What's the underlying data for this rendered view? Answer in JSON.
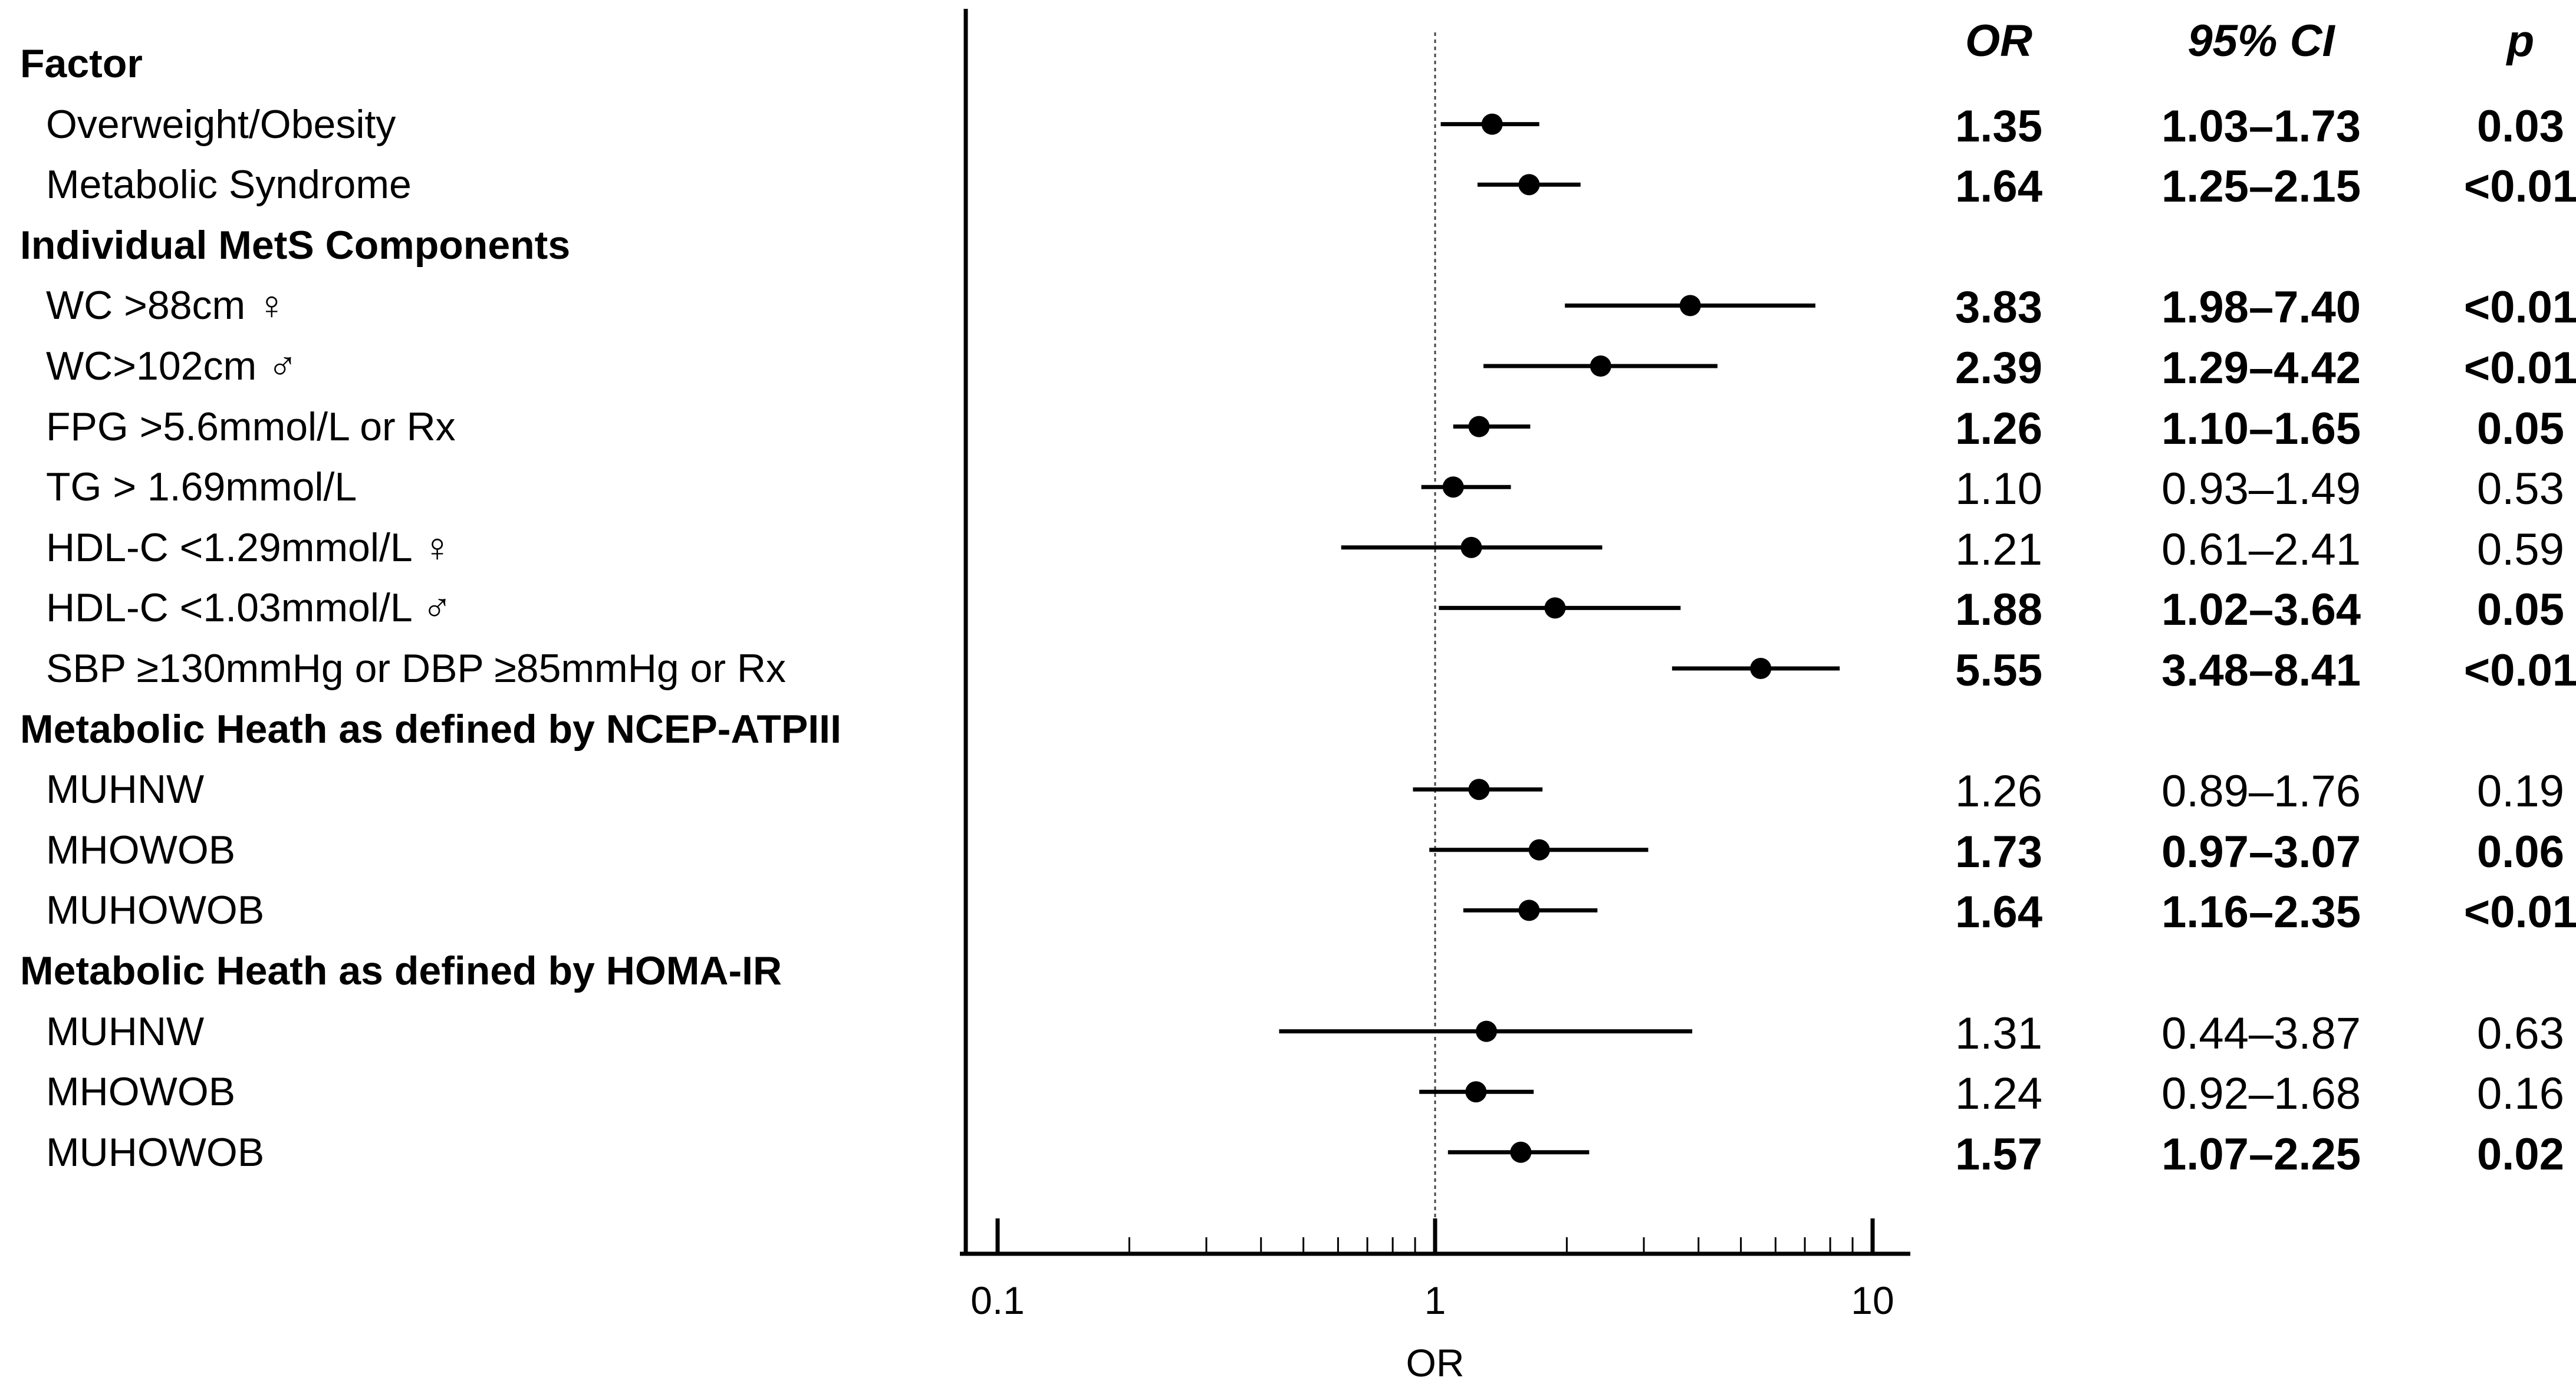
{
  "chart_data": {
    "type": "forest",
    "xlabel": "OR",
    "xscale": "log",
    "xlim": [
      0.1,
      10
    ],
    "xticks": [
      "0.1",
      "1",
      "10"
    ],
    "reference_line": 1,
    "label_column_header": "Factor",
    "column_headers": {
      "or": "OR",
      "ci": "95% CI",
      "p": "p"
    },
    "rows": [
      {
        "kind": "header",
        "label": "Factor"
      },
      {
        "kind": "item",
        "label": "Overweight/Obesity",
        "or": 1.35,
        "lo": 1.03,
        "hi": 1.73,
        "or_text": "1.35",
        "ci_text": "1.03–1.73",
        "p_text": "0.03",
        "bold": true
      },
      {
        "kind": "item",
        "label": "Metabolic Syndrome",
        "or": 1.64,
        "lo": 1.25,
        "hi": 2.15,
        "or_text": "1.64",
        "ci_text": "1.25–2.15",
        "p_text": "<0.01",
        "bold": true
      },
      {
        "kind": "header",
        "label": "Individual MetS Components"
      },
      {
        "kind": "item",
        "label": "WC >88cm ♀",
        "or": 3.83,
        "lo": 1.98,
        "hi": 7.4,
        "or_text": "3.83",
        "ci_text": "1.98–7.40",
        "p_text": "<0.01",
        "bold": true
      },
      {
        "kind": "item",
        "label": "WC>102cm  ♂",
        "or": 2.39,
        "lo": 1.29,
        "hi": 4.42,
        "or_text": "2.39",
        "ci_text": "1.29–4.42",
        "p_text": "<0.01",
        "bold": true
      },
      {
        "kind": "item",
        "label": "FPG >5.6mmol/L or Rx",
        "or": 1.26,
        "lo": 1.1,
        "hi": 1.65,
        "or_text": "1.26",
        "ci_text": "1.10–1.65",
        "p_text": "0.05",
        "bold": true
      },
      {
        "kind": "item",
        "label": "TG > 1.69mmol/L",
        "or": 1.1,
        "lo": 0.93,
        "hi": 1.49,
        "or_text": "1.10",
        "ci_text": "0.93–1.49",
        "p_text": "0.53",
        "bold": false
      },
      {
        "kind": "item",
        "label": "HDL-C <1.29mmol/L ♀",
        "or": 1.21,
        "lo": 0.61,
        "hi": 2.41,
        "or_text": "1.21",
        "ci_text": "0.61–2.41",
        "p_text": "0.59",
        "bold": false
      },
      {
        "kind": "item",
        "label": "HDL-C <1.03mmol/L ♂",
        "or": 1.88,
        "lo": 1.02,
        "hi": 3.64,
        "or_text": "1.88",
        "ci_text": "1.02–3.64",
        "p_text": "0.05",
        "bold": true
      },
      {
        "kind": "item",
        "label": "SBP ≥130mmHg or DBP ≥85mmHg or Rx",
        "or": 5.55,
        "lo": 3.48,
        "hi": 8.41,
        "or_text": "5.55",
        "ci_text": "3.48–8.41",
        "p_text": "<0.01",
        "bold": true
      },
      {
        "kind": "header",
        "label": "Metabolic Heath as defined by NCEP-ATPIII"
      },
      {
        "kind": "item",
        "label": "MUHNW",
        "or": 1.26,
        "lo": 0.89,
        "hi": 1.76,
        "or_text": "1.26",
        "ci_text": "0.89–1.76",
        "p_text": "0.19",
        "bold": false
      },
      {
        "kind": "item",
        "label": "MHOWOB",
        "or": 1.73,
        "lo": 0.97,
        "hi": 3.07,
        "or_text": "1.73",
        "ci_text": "0.97–3.07",
        "p_text": "0.06",
        "bold": true
      },
      {
        "kind": "item",
        "label": "MUHOWOB",
        "or": 1.64,
        "lo": 1.16,
        "hi": 2.35,
        "or_text": "1.64",
        "ci_text": "1.16–2.35",
        "p_text": "<0.01",
        "bold": true
      },
      {
        "kind": "header",
        "label": "Metabolic Heath as defined by HOMA-IR"
      },
      {
        "kind": "item",
        "label": "MUHNW",
        "or": 1.31,
        "lo": 0.44,
        "hi": 3.87,
        "or_text": "1.31",
        "ci_text": "0.44–3.87",
        "p_text": "0.63",
        "bold": false
      },
      {
        "kind": "item",
        "label": "MHOWOB",
        "or": 1.24,
        "lo": 0.92,
        "hi": 1.68,
        "or_text": "1.24",
        "ci_text": "0.92–1.68",
        "p_text": "0.16",
        "bold": false
      },
      {
        "kind": "item",
        "label": "MUHOWOB",
        "or": 1.57,
        "lo": 1.07,
        "hi": 2.25,
        "or_text": "1.57",
        "ci_text": "1.07–2.25",
        "p_text": "0.02",
        "bold": true
      }
    ]
  }
}
